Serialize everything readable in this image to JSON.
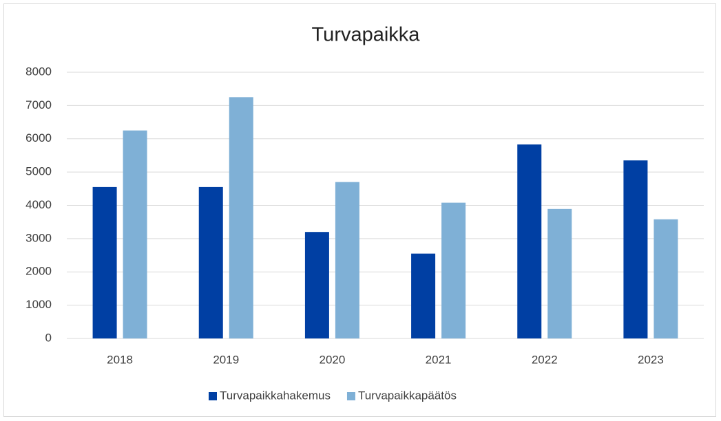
{
  "chart_data": {
    "type": "bar",
    "title": "Turvapaikka",
    "categories": [
      "2018",
      "2019",
      "2020",
      "2021",
      "2022",
      "2023"
    ],
    "series": [
      {
        "name": "Turvapaikkahakemus",
        "color": "#003fa3",
        "values": [
          4550,
          4550,
          3200,
          2550,
          5830,
          5350
        ]
      },
      {
        "name": "Turvapaikkapäätös",
        "color": "#7fb0d6",
        "values": [
          6250,
          7250,
          4700,
          4080,
          3890,
          3580
        ]
      }
    ],
    "ylim": [
      0,
      8000
    ],
    "yticks": [
      0,
      1000,
      2000,
      3000,
      4000,
      5000,
      6000,
      7000,
      8000
    ],
    "grid": true,
    "legend": "bottom"
  }
}
